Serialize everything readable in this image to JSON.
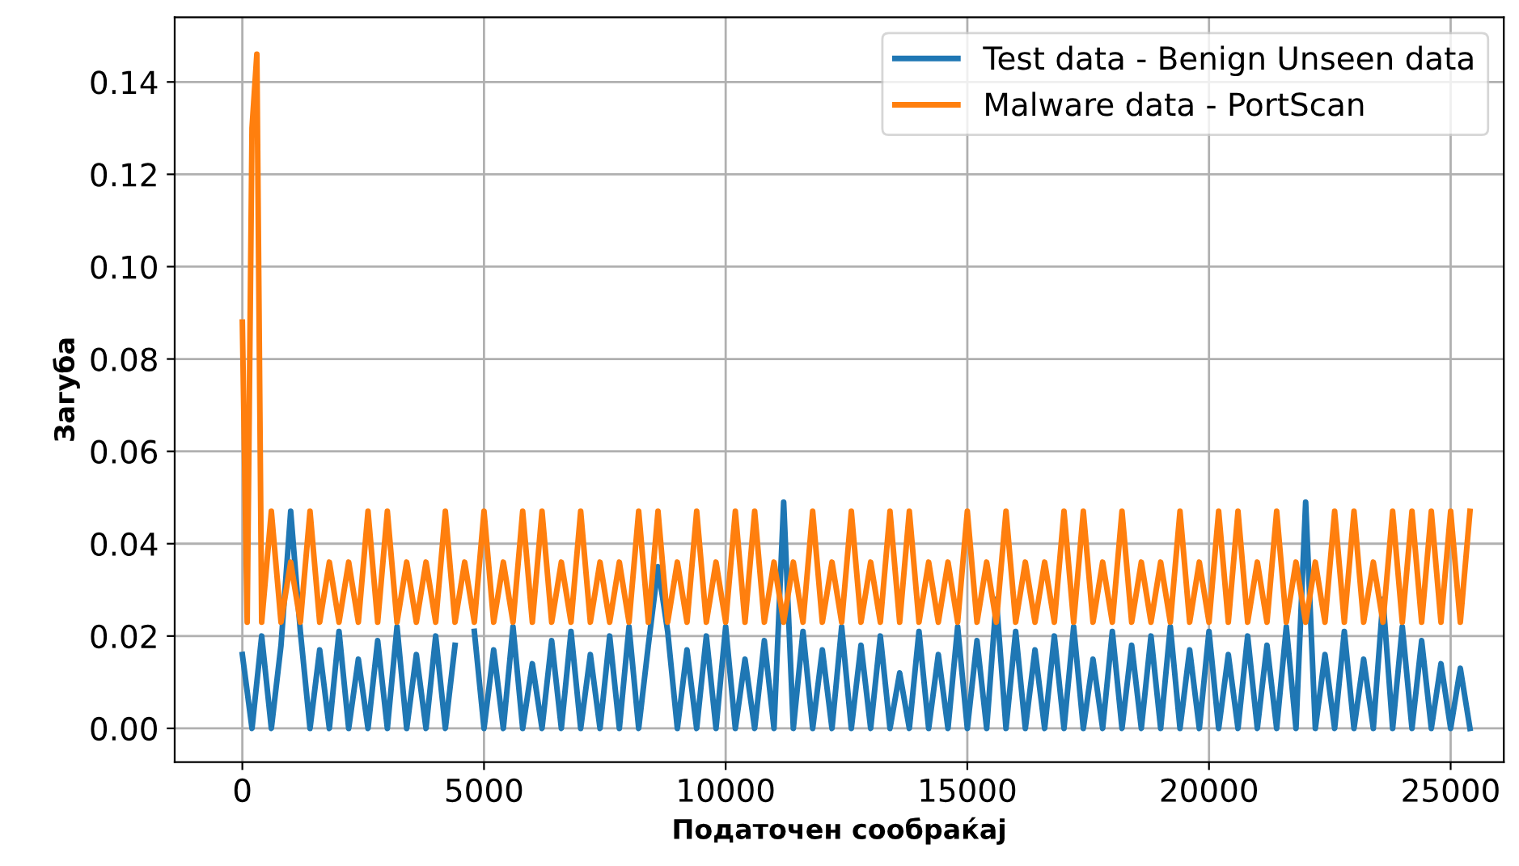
{
  "chart_data": {
    "type": "line",
    "xlabel": "Податочен сообраќај",
    "ylabel": "Загуба",
    "xlim": [
      -1400,
      26100
    ],
    "ylim": [
      -0.0073,
      0.154
    ],
    "xticks": [
      0,
      5000,
      10000,
      15000,
      20000,
      25000
    ],
    "yticks": [
      {
        "value": 0,
        "label": "0.00"
      },
      {
        "value": 0.02,
        "label": "0.02"
      },
      {
        "value": 0.04,
        "label": "0.04"
      },
      {
        "value": 0.06,
        "label": "0.06"
      },
      {
        "value": 0.08,
        "label": "0.08"
      },
      {
        "value": 0.1,
        "label": "0.10"
      },
      {
        "value": 0.12,
        "label": "0.12"
      },
      {
        "value": 0.14,
        "label": "0.14"
      }
    ],
    "grid": true,
    "legend": "top right",
    "marker": "none",
    "line_style": "solid",
    "series": [
      {
        "name": "Test data - Benign Unseen data",
        "color": "#1f77b4",
        "x": [
          0,
          200,
          400,
          600,
          800,
          1000,
          1200,
          1400,
          1600,
          1800,
          2000,
          2200,
          2400,
          2600,
          2800,
          3000,
          3200,
          3400,
          3600,
          3800,
          4000,
          4200,
          4400,
          4600,
          4800,
          5000,
          5200,
          5400,
          5600,
          5800,
          6000,
          6200,
          6400,
          6600,
          6800,
          7000,
          7200,
          7400,
          7600,
          7800,
          8000,
          8200,
          8400,
          8600,
          8800,
          9000,
          9200,
          9400,
          9600,
          9800,
          10000,
          10200,
          10400,
          10600,
          10800,
          11000,
          11200,
          11400,
          11600,
          11800,
          12000,
          12200,
          12400,
          12600,
          12800,
          13000,
          13200,
          13400,
          13600,
          13800,
          14000,
          14200,
          14400,
          14600,
          14800,
          15000,
          15200,
          15400,
          15600,
          15800,
          16000,
          16200,
          16400,
          16600,
          16800,
          17000,
          17200,
          17400,
          17600,
          17800,
          18000,
          18200,
          18400,
          18600,
          18800,
          19000,
          19200,
          19400,
          19600,
          19800,
          20000,
          20200,
          20400,
          20600,
          20800,
          21000,
          21200,
          21400,
          21600,
          21800,
          22000,
          22200,
          22400,
          22600,
          22800,
          23000,
          23200,
          23400,
          23600,
          23800,
          24000,
          24200,
          24400,
          24600,
          24800,
          25000,
          25200,
          25400
        ],
        "values": [
          0.016,
          0,
          0.02,
          0,
          0.018,
          0.047,
          0.021,
          0,
          0.017,
          0,
          0.021,
          0,
          0.015,
          0,
          0.019,
          0,
          0.022,
          0,
          0.016,
          0,
          0.02,
          0,
          0.018,
          null,
          0.021,
          0,
          0.017,
          0,
          0.022,
          0,
          0.014,
          0,
          0.019,
          0,
          0.021,
          0,
          0.016,
          0,
          0.02,
          0,
          0.022,
          0,
          0.018,
          0.035,
          0.021,
          0,
          0.017,
          0,
          0.02,
          0,
          0.022,
          0,
          0.015,
          0,
          0.019,
          0,
          0.049,
          0,
          0.021,
          0,
          0.017,
          0,
          0.022,
          0,
          0.018,
          0,
          0.02,
          0,
          0.012,
          0,
          0.021,
          0,
          0.016,
          0,
          0.022,
          0,
          0.019,
          0,
          0.028,
          0,
          0.021,
          0,
          0.017,
          0,
          0.02,
          0,
          0.022,
          0,
          0.015,
          0,
          0.021,
          0,
          0.018,
          0,
          0.02,
          0,
          0.022,
          0,
          0.017,
          0,
          0.021,
          0,
          0.016,
          0,
          0.02,
          0,
          0.018,
          0,
          0.022,
          0,
          0.049,
          0,
          0.016,
          0,
          0.021,
          0,
          0.015,
          0,
          0.028,
          0,
          0.022,
          0,
          0.019,
          0,
          0.014,
          0,
          0.013,
          0
        ]
      },
      {
        "name": "Malware data - PortScan",
        "color": "#ff7f0e",
        "x": [
          0,
          100,
          200,
          300,
          400,
          600,
          800,
          1000,
          1200,
          1400,
          1600,
          1800,
          2000,
          2200,
          2400,
          2600,
          2800,
          3000,
          3200,
          3400,
          3600,
          3800,
          4000,
          4200,
          4400,
          4600,
          4800,
          5000,
          5200,
          5400,
          5600,
          5800,
          6000,
          6200,
          6400,
          6600,
          6800,
          7000,
          7200,
          7400,
          7600,
          7800,
          8000,
          8200,
          8400,
          8600,
          8800,
          9000,
          9200,
          9400,
          9600,
          9800,
          10000,
          10200,
          10400,
          10600,
          10800,
          11000,
          11200,
          11400,
          11600,
          11800,
          12000,
          12200,
          12400,
          12600,
          12800,
          13000,
          13200,
          13400,
          13600,
          13800,
          14000,
          14200,
          14400,
          14600,
          14800,
          15000,
          15200,
          15400,
          15600,
          15800,
          16000,
          16200,
          16400,
          16600,
          16800,
          17000,
          17200,
          17400,
          17600,
          17800,
          18000,
          18200,
          18400,
          18600,
          18800,
          19000,
          19200,
          19400,
          19600,
          19800,
          20000,
          20200,
          20400,
          20600,
          20800,
          21000,
          21200,
          21400,
          21600,
          21800,
          22000,
          22200,
          22400,
          22600,
          22800,
          23000,
          23200,
          23400,
          23600,
          23800,
          24000,
          24200,
          24400,
          24600,
          24800,
          25000,
          25200,
          25400
        ],
        "values": [
          0.088,
          0.023,
          0.13,
          0.146,
          0.023,
          0.047,
          0.023,
          0.036,
          0.023,
          0.047,
          0.023,
          0.036,
          0.023,
          0.036,
          0.023,
          0.047,
          0.023,
          0.047,
          0.023,
          0.036,
          0.023,
          0.036,
          0.023,
          0.047,
          0.023,
          0.036,
          0.023,
          0.047,
          0.023,
          0.036,
          0.023,
          0.047,
          0.023,
          0.047,
          0.023,
          0.036,
          0.023,
          0.047,
          0.023,
          0.036,
          0.023,
          0.036,
          0.023,
          0.047,
          0.023,
          0.047,
          0.023,
          0.036,
          0.023,
          0.047,
          0.023,
          0.036,
          0.023,
          0.047,
          0.023,
          0.047,
          0.023,
          0.036,
          0.023,
          0.036,
          0.023,
          0.047,
          0.023,
          0.036,
          0.023,
          0.047,
          0.023,
          0.036,
          0.023,
          0.047,
          0.023,
          0.047,
          0.023,
          0.036,
          0.023,
          0.036,
          0.023,
          0.047,
          0.023,
          0.036,
          0.023,
          0.047,
          0.023,
          0.036,
          0.023,
          0.036,
          0.023,
          0.047,
          0.023,
          0.047,
          0.023,
          0.036,
          0.023,
          0.047,
          0.023,
          0.036,
          0.023,
          0.036,
          0.023,
          0.047,
          0.023,
          0.036,
          0.023,
          0.047,
          0.023,
          0.047,
          0.023,
          0.036,
          0.023,
          0.047,
          0.023,
          0.036,
          0.023,
          0.036,
          0.023,
          0.047,
          0.023,
          0.047,
          0.023,
          0.036,
          0.023,
          0.047,
          0.023,
          0.047,
          0.023,
          0.047,
          0.023,
          0.047,
          0.023,
          0.047
        ]
      }
    ]
  }
}
